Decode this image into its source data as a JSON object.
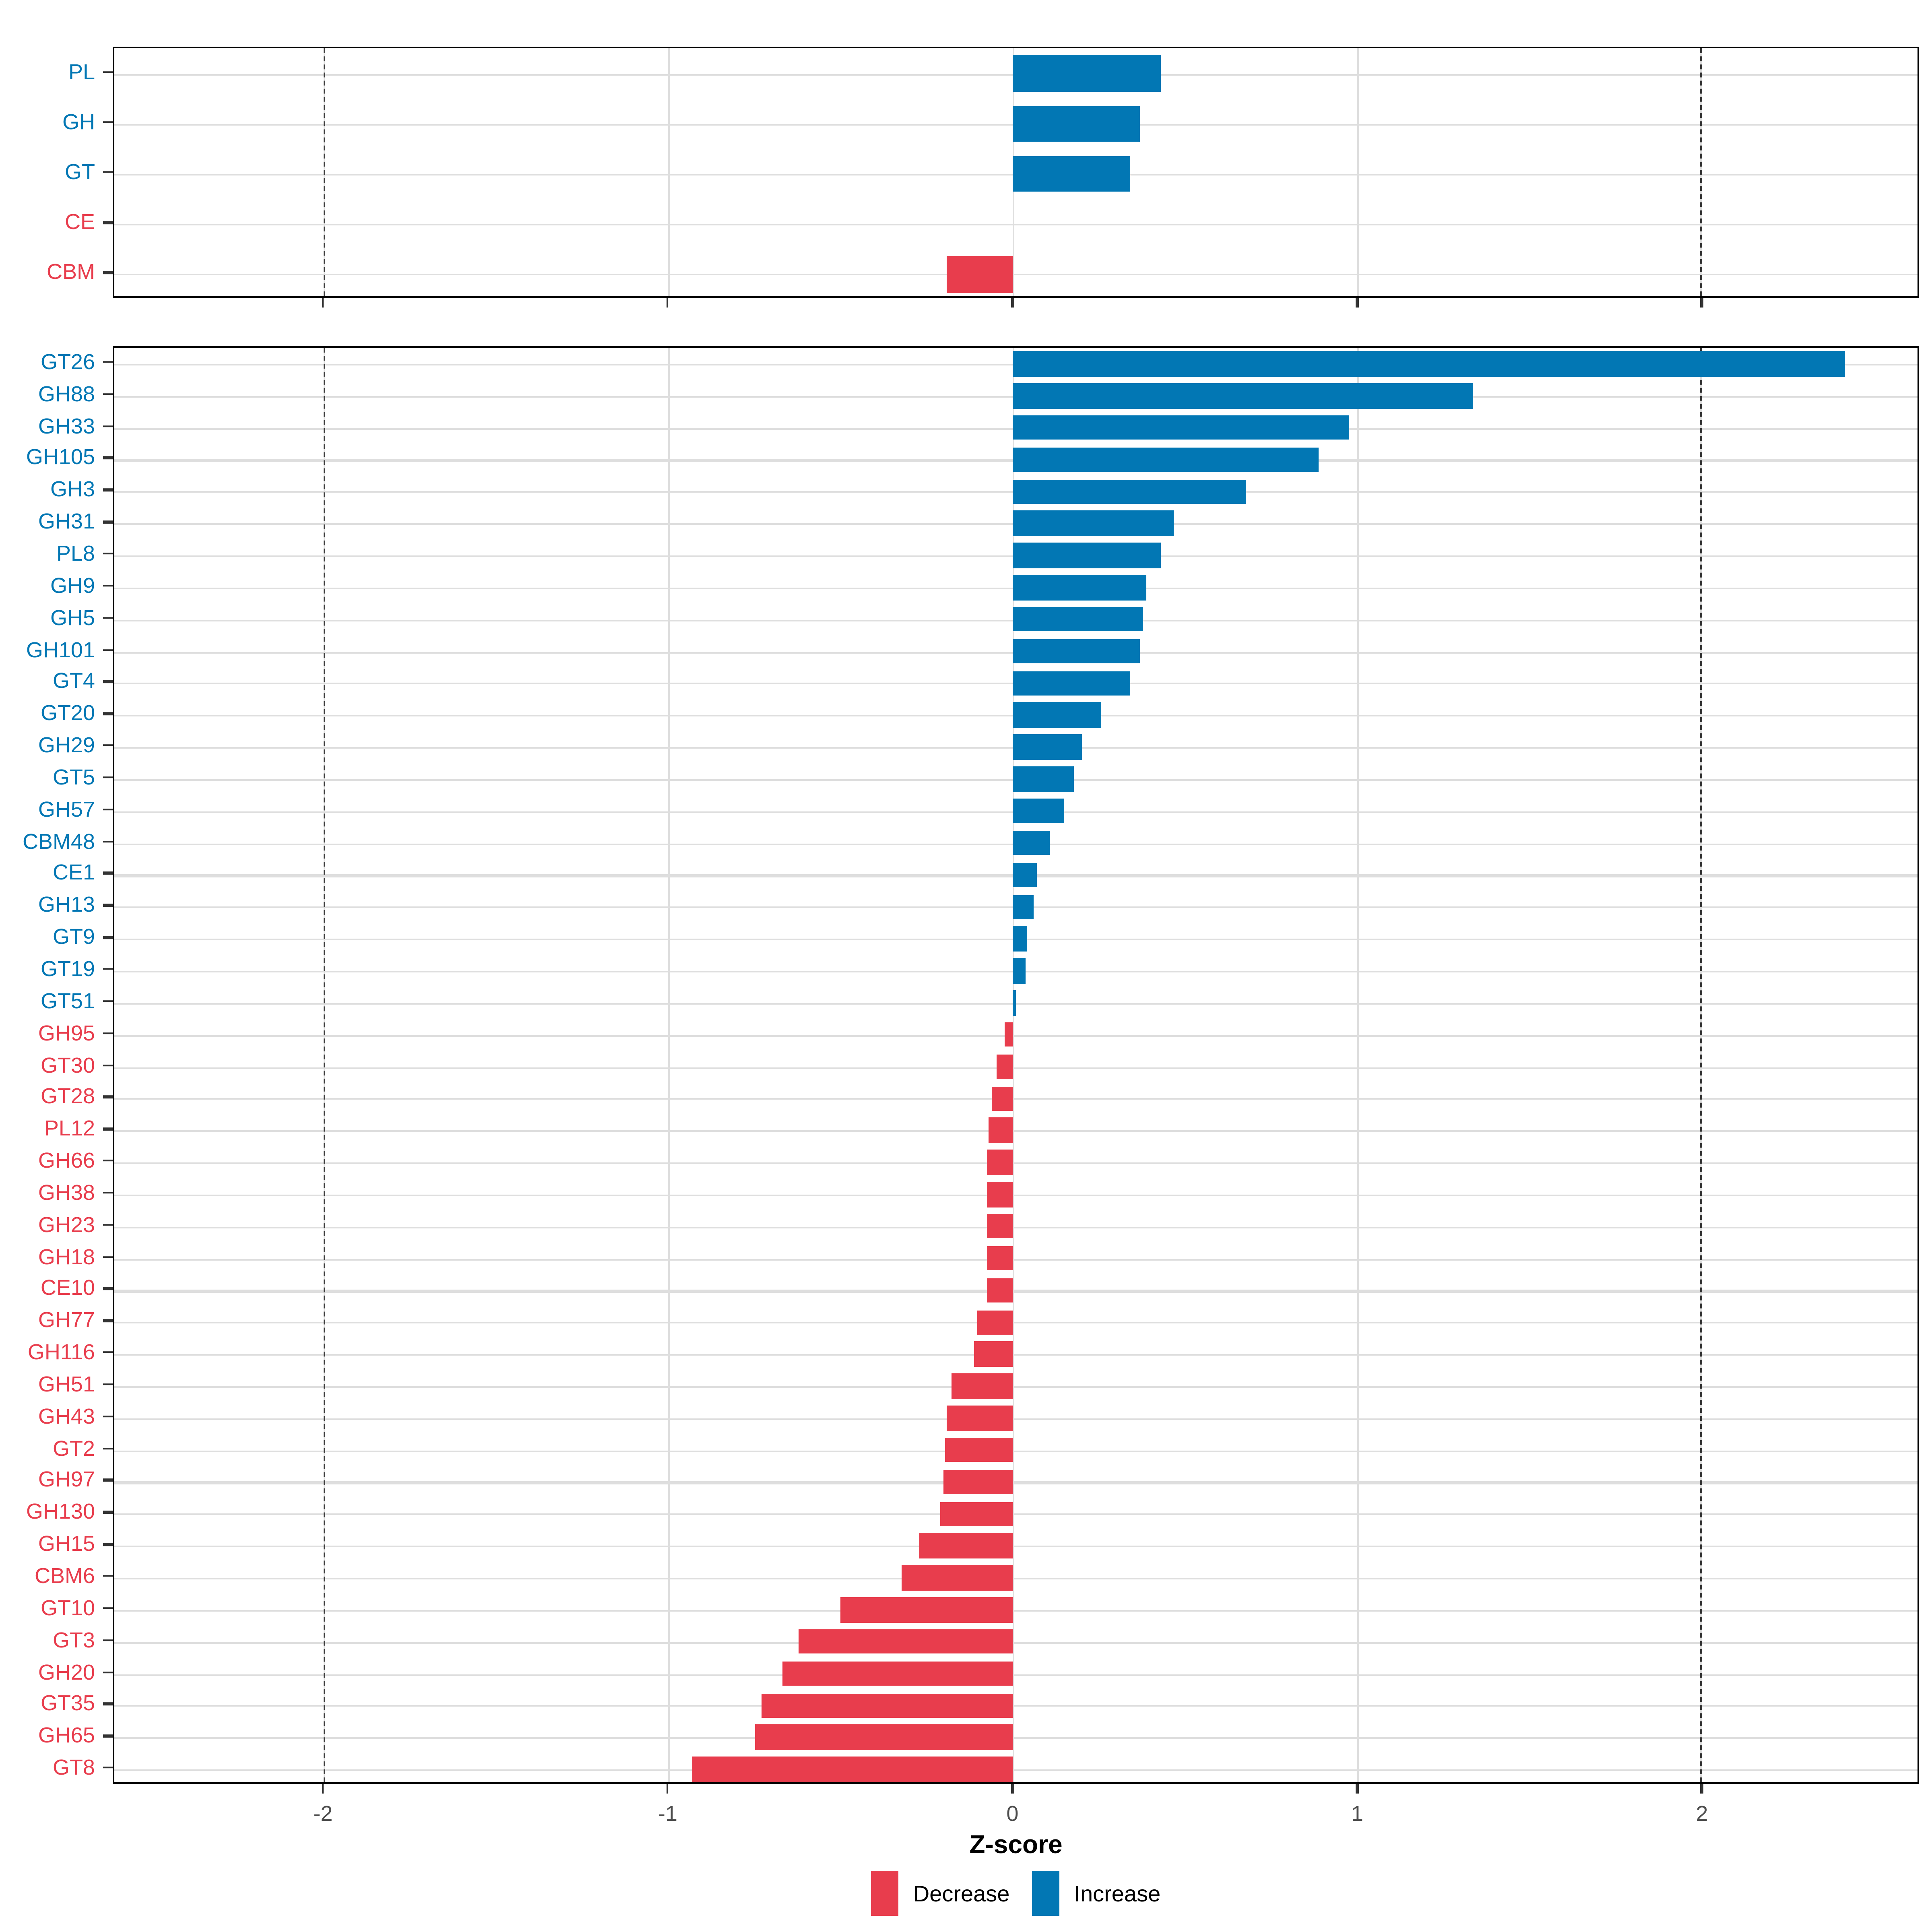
{
  "figure": {
    "background": "#ffffff"
  },
  "colors": {
    "increase": "#0277B4",
    "decrease": "#E83D4D",
    "grid": "#DEDEDE",
    "panel_border": "#000000",
    "dashed_line": "#3A3A3A",
    "x_tick_label": "#4D4D4D",
    "axis_title": "#000000"
  },
  "axis": {
    "title": "Z-score",
    "ticks": [
      -2,
      -1,
      0,
      1,
      2
    ],
    "tick_labels": [
      "-2",
      "-1",
      "0",
      "1",
      "2"
    ],
    "xmin": -2.61,
    "xmax": 2.63,
    "reference_lines": [
      -2,
      2
    ]
  },
  "legend": {
    "items": [
      {
        "label": "Decrease",
        "color_key": "decrease"
      },
      {
        "label": "Increase",
        "color_key": "increase"
      }
    ]
  },
  "chart_data": {
    "type": "bar",
    "orientation": "horizontal",
    "xlabel": "Z-score",
    "xlim": [
      -2.61,
      2.63
    ],
    "x_ticks": [
      -2,
      -1,
      0,
      1,
      2
    ],
    "reference_lines": [
      -2,
      2
    ],
    "grid": "on",
    "legend_position": "bottom",
    "legend_entries": [
      "Decrease",
      "Increase"
    ],
    "panels": [
      {
        "name": "enzyme-classes",
        "categories": [
          "PL",
          "GH",
          "GT",
          "CE",
          "CBM"
        ],
        "values": [
          0.43,
          0.37,
          0.34,
          0.0,
          -0.19
        ],
        "directions": [
          "increase",
          "increase",
          "increase",
          "decrease",
          "decrease"
        ]
      },
      {
        "name": "enzyme-families",
        "categories": [
          "GT26",
          "GH88",
          "GH33",
          "GH105",
          "GH3",
          "GH31",
          "PL8",
          "GH9",
          "GH5",
          "GH101",
          "GT4",
          "GT20",
          "GH29",
          "GT5",
          "GH57",
          "CBM48",
          "CE1",
          "GH13",
          "GT9",
          "GT19",
          "GT51",
          "GH95",
          "GT30",
          "GT28",
          "PL12",
          "GH66",
          "GH38",
          "GH23",
          "GH18",
          "CE10",
          "GH77",
          "GH116",
          "GH51",
          "GH43",
          "GT2",
          "GH97",
          "GH130",
          "GH15",
          "CBM6",
          "GT10",
          "GT3",
          "GH20",
          "GT35",
          "GH65",
          "GT8"
        ],
        "values": [
          2.42,
          1.34,
          0.98,
          0.89,
          0.68,
          0.47,
          0.43,
          0.39,
          0.38,
          0.37,
          0.34,
          0.26,
          0.2,
          0.18,
          0.15,
          0.11,
          0.07,
          0.06,
          0.045,
          0.04,
          0.012,
          -0.023,
          -0.047,
          -0.058,
          -0.071,
          -0.072,
          -0.072,
          -0.073,
          -0.073,
          -0.074,
          -0.1,
          -0.11,
          -0.175,
          -0.19,
          -0.195,
          -0.2,
          -0.21,
          -0.27,
          -0.32,
          -0.5,
          -0.62,
          -0.67,
          -0.73,
          -0.75,
          -0.93
        ],
        "directions": [
          "increase",
          "increase",
          "increase",
          "increase",
          "increase",
          "increase",
          "increase",
          "increase",
          "increase",
          "increase",
          "increase",
          "increase",
          "increase",
          "increase",
          "increase",
          "increase",
          "increase",
          "increase",
          "increase",
          "increase",
          "increase",
          "decrease",
          "decrease",
          "decrease",
          "decrease",
          "decrease",
          "decrease",
          "decrease",
          "decrease",
          "decrease",
          "decrease",
          "decrease",
          "decrease",
          "decrease",
          "decrease",
          "decrease",
          "decrease",
          "decrease",
          "decrease",
          "decrease",
          "decrease",
          "decrease",
          "decrease",
          "decrease",
          "decrease"
        ]
      }
    ]
  }
}
